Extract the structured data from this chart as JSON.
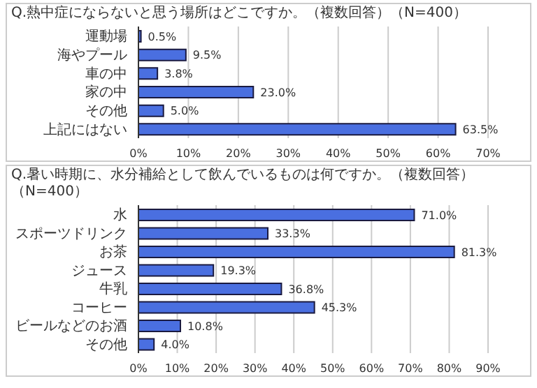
{
  "chart_data": [
    {
      "type": "bar",
      "orientation": "horizontal",
      "title": "Q.熱中症にならないと思う場所はどこですか。（複数回答）（N=400）",
      "categories": [
        "運動場",
        "海やプール",
        "車の中",
        "家の中",
        "その他",
        "上記にはない"
      ],
      "values": [
        0.5,
        9.5,
        3.8,
        23.0,
        5.0,
        63.5
      ],
      "value_labels": [
        "0.5%",
        "9.5%",
        "3.8%",
        "23.0%",
        "5.0%",
        "63.5%"
      ],
      "color": "#4a6fe0",
      "xlim": [
        0,
        70
      ],
      "xticks": [
        {
          "value": 0,
          "label": "0%"
        },
        {
          "value": 10,
          "label": "10%"
        },
        {
          "value": 20,
          "label": "20%"
        },
        {
          "value": 30,
          "label": "30%"
        },
        {
          "value": 40,
          "label": "40%"
        },
        {
          "value": 50,
          "label": "50%"
        },
        {
          "value": 60,
          "label": "60%"
        },
        {
          "value": 70,
          "label": "70%"
        }
      ],
      "grid": "x"
    },
    {
      "type": "bar",
      "orientation": "horizontal",
      "title": "Q.暑い時期に、水分補給として飲んでいるものは何ですか。（複数回答）（N=400）",
      "categories": [
        "水",
        "スポーツドリンク",
        "お茶",
        "ジュース",
        "牛乳",
        "コーヒー",
        "ビールなどのお酒",
        "その他"
      ],
      "values": [
        71.0,
        33.3,
        81.3,
        19.3,
        36.8,
        45.3,
        10.8,
        4.0
      ],
      "value_labels": [
        "71.0%",
        "33.3%",
        "81.3%",
        "19.3%",
        "36.8%",
        "45.3%",
        "10.8%",
        "4.0%"
      ],
      "color": "#4a6fe0",
      "xlim": [
        0,
        90
      ],
      "xticks": [
        {
          "value": 0,
          "label": "0%"
        },
        {
          "value": 10,
          "label": "10%"
        },
        {
          "value": 20,
          "label": "20%"
        },
        {
          "value": 30,
          "label": "30%"
        },
        {
          "value": 40,
          "label": "40%"
        },
        {
          "value": 50,
          "label": "50%"
        },
        {
          "value": 60,
          "label": "60%"
        },
        {
          "value": 70,
          "label": "70%"
        },
        {
          "value": 80,
          "label": "80%"
        },
        {
          "value": 90,
          "label": "90%"
        }
      ],
      "grid": "x"
    }
  ]
}
